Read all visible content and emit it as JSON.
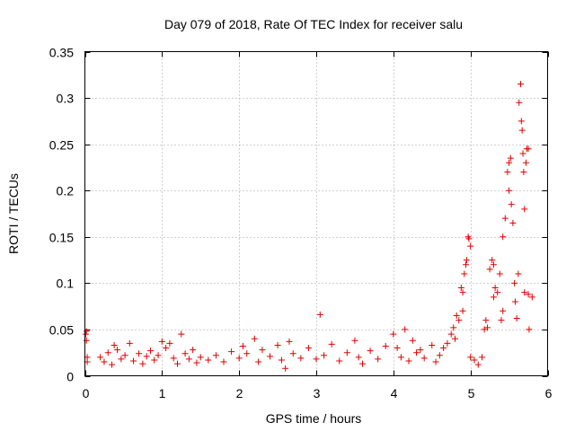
{
  "chart_data": {
    "type": "scatter",
    "title": "Day 079 of 2018, Rate Of TEC Index for receiver salu",
    "xlabel": "GPS time / hours",
    "ylabel": "ROTI / TECUs",
    "xlim": [
      0,
      6
    ],
    "ylim": [
      0,
      0.35
    ],
    "xticks": [
      0,
      1,
      2,
      3,
      4,
      5,
      6
    ],
    "xtick_labels": [
      "0",
      "1",
      "2",
      "3",
      "4",
      "5",
      "6"
    ],
    "yticks": [
      0,
      0.05,
      0.1,
      0.15,
      0.2,
      0.25,
      0.3,
      0.35
    ],
    "ytick_labels": [
      "0",
      "0.05",
      "0.1",
      "0.15",
      "0.2",
      "0.25",
      "0.3",
      "0.35"
    ],
    "grid": true,
    "marker": "plus",
    "color": "#e00000",
    "series": [
      {
        "name": "ROTI",
        "points": [
          [
            0.01,
            0.045
          ],
          [
            0.02,
            0.038
          ],
          [
            0.02,
            0.048
          ],
          [
            0.03,
            0.02
          ],
          [
            0.03,
            0.015
          ],
          [
            0.2,
            0.02
          ],
          [
            0.25,
            0.015
          ],
          [
            0.3,
            0.025
          ],
          [
            0.35,
            0.012
          ],
          [
            0.38,
            0.033
          ],
          [
            0.42,
            0.028
          ],
          [
            0.47,
            0.018
          ],
          [
            0.52,
            0.022
          ],
          [
            0.58,
            0.035
          ],
          [
            0.63,
            0.016
          ],
          [
            0.7,
            0.024
          ],
          [
            0.75,
            0.013
          ],
          [
            0.8,
            0.021
          ],
          [
            0.85,
            0.027
          ],
          [
            0.9,
            0.017
          ],
          [
            0.95,
            0.022
          ],
          [
            1.0,
            0.037
          ],
          [
            1.05,
            0.03
          ],
          [
            1.1,
            0.035
          ],
          [
            1.15,
            0.019
          ],
          [
            1.2,
            0.013
          ],
          [
            1.25,
            0.045
          ],
          [
            1.3,
            0.024
          ],
          [
            1.35,
            0.018
          ],
          [
            1.4,
            0.028
          ],
          [
            1.45,
            0.014
          ],
          [
            1.5,
            0.02
          ],
          [
            1.6,
            0.017
          ],
          [
            1.7,
            0.022
          ],
          [
            1.8,
            0.015
          ],
          [
            1.9,
            0.026
          ],
          [
            2.0,
            0.019
          ],
          [
            2.05,
            0.032
          ],
          [
            2.1,
            0.024
          ],
          [
            2.2,
            0.04
          ],
          [
            2.25,
            0.015
          ],
          [
            2.3,
            0.028
          ],
          [
            2.4,
            0.021
          ],
          [
            2.5,
            0.033
          ],
          [
            2.55,
            0.017
          ],
          [
            2.6,
            0.008
          ],
          [
            2.65,
            0.037
          ],
          [
            2.7,
            0.024
          ],
          [
            2.8,
            0.019
          ],
          [
            2.9,
            0.03
          ],
          [
            3.0,
            0.018
          ],
          [
            3.05,
            0.066
          ],
          [
            3.1,
            0.022
          ],
          [
            3.2,
            0.034
          ],
          [
            3.3,
            0.016
          ],
          [
            3.4,
            0.025
          ],
          [
            3.5,
            0.038
          ],
          [
            3.55,
            0.02
          ],
          [
            3.6,
            0.013
          ],
          [
            3.7,
            0.027
          ],
          [
            3.8,
            0.018
          ],
          [
            3.9,
            0.032
          ],
          [
            4.0,
            0.045
          ],
          [
            4.05,
            0.03
          ],
          [
            4.1,
            0.02
          ],
          [
            4.15,
            0.05
          ],
          [
            4.2,
            0.016
          ],
          [
            4.25,
            0.038
          ],
          [
            4.3,
            0.025
          ],
          [
            4.35,
            0.028
          ],
          [
            4.4,
            0.019
          ],
          [
            4.5,
            0.033
          ],
          [
            4.55,
            0.015
          ],
          [
            4.6,
            0.022
          ],
          [
            4.65,
            0.03
          ],
          [
            4.7,
            0.035
          ],
          [
            4.75,
            0.045
          ],
          [
            4.78,
            0.052
          ],
          [
            4.8,
            0.04
          ],
          [
            4.82,
            0.065
          ],
          [
            4.85,
            0.06
          ],
          [
            4.88,
            0.095
          ],
          [
            4.9,
            0.09
          ],
          [
            4.9,
            0.07
          ],
          [
            4.92,
            0.11
          ],
          [
            4.94,
            0.12
          ],
          [
            4.95,
            0.125
          ],
          [
            4.97,
            0.15
          ],
          [
            4.98,
            0.148
          ],
          [
            5.0,
            0.14
          ],
          [
            5.0,
            0.02
          ],
          [
            5.05,
            0.017
          ],
          [
            5.1,
            0.012
          ],
          [
            5.15,
            0.02
          ],
          [
            5.18,
            0.05
          ],
          [
            5.2,
            0.06
          ],
          [
            5.22,
            0.052
          ],
          [
            5.25,
            0.115
          ],
          [
            5.28,
            0.125
          ],
          [
            5.3,
            0.12
          ],
          [
            5.3,
            0.085
          ],
          [
            5.32,
            0.095
          ],
          [
            5.35,
            0.09
          ],
          [
            5.38,
            0.11
          ],
          [
            5.4,
            0.06
          ],
          [
            5.42,
            0.07
          ],
          [
            5.42,
            0.15
          ],
          [
            5.45,
            0.17
          ],
          [
            5.48,
            0.22
          ],
          [
            5.5,
            0.2
          ],
          [
            5.5,
            0.23
          ],
          [
            5.52,
            0.235
          ],
          [
            5.53,
            0.185
          ],
          [
            5.55,
            0.165
          ],
          [
            5.57,
            0.1
          ],
          [
            5.58,
            0.08
          ],
          [
            5.6,
            0.062
          ],
          [
            5.62,
            0.11
          ],
          [
            5.63,
            0.295
          ],
          [
            5.65,
            0.315
          ],
          [
            5.66,
            0.275
          ],
          [
            5.67,
            0.265
          ],
          [
            5.68,
            0.24
          ],
          [
            5.69,
            0.22
          ],
          [
            5.7,
            0.18
          ],
          [
            5.7,
            0.09
          ],
          [
            5.72,
            0.23
          ],
          [
            5.73,
            0.245
          ],
          [
            5.75,
            0.245
          ],
          [
            5.75,
            0.088
          ],
          [
            5.76,
            0.05
          ],
          [
            5.8,
            0.085
          ]
        ]
      }
    ]
  }
}
